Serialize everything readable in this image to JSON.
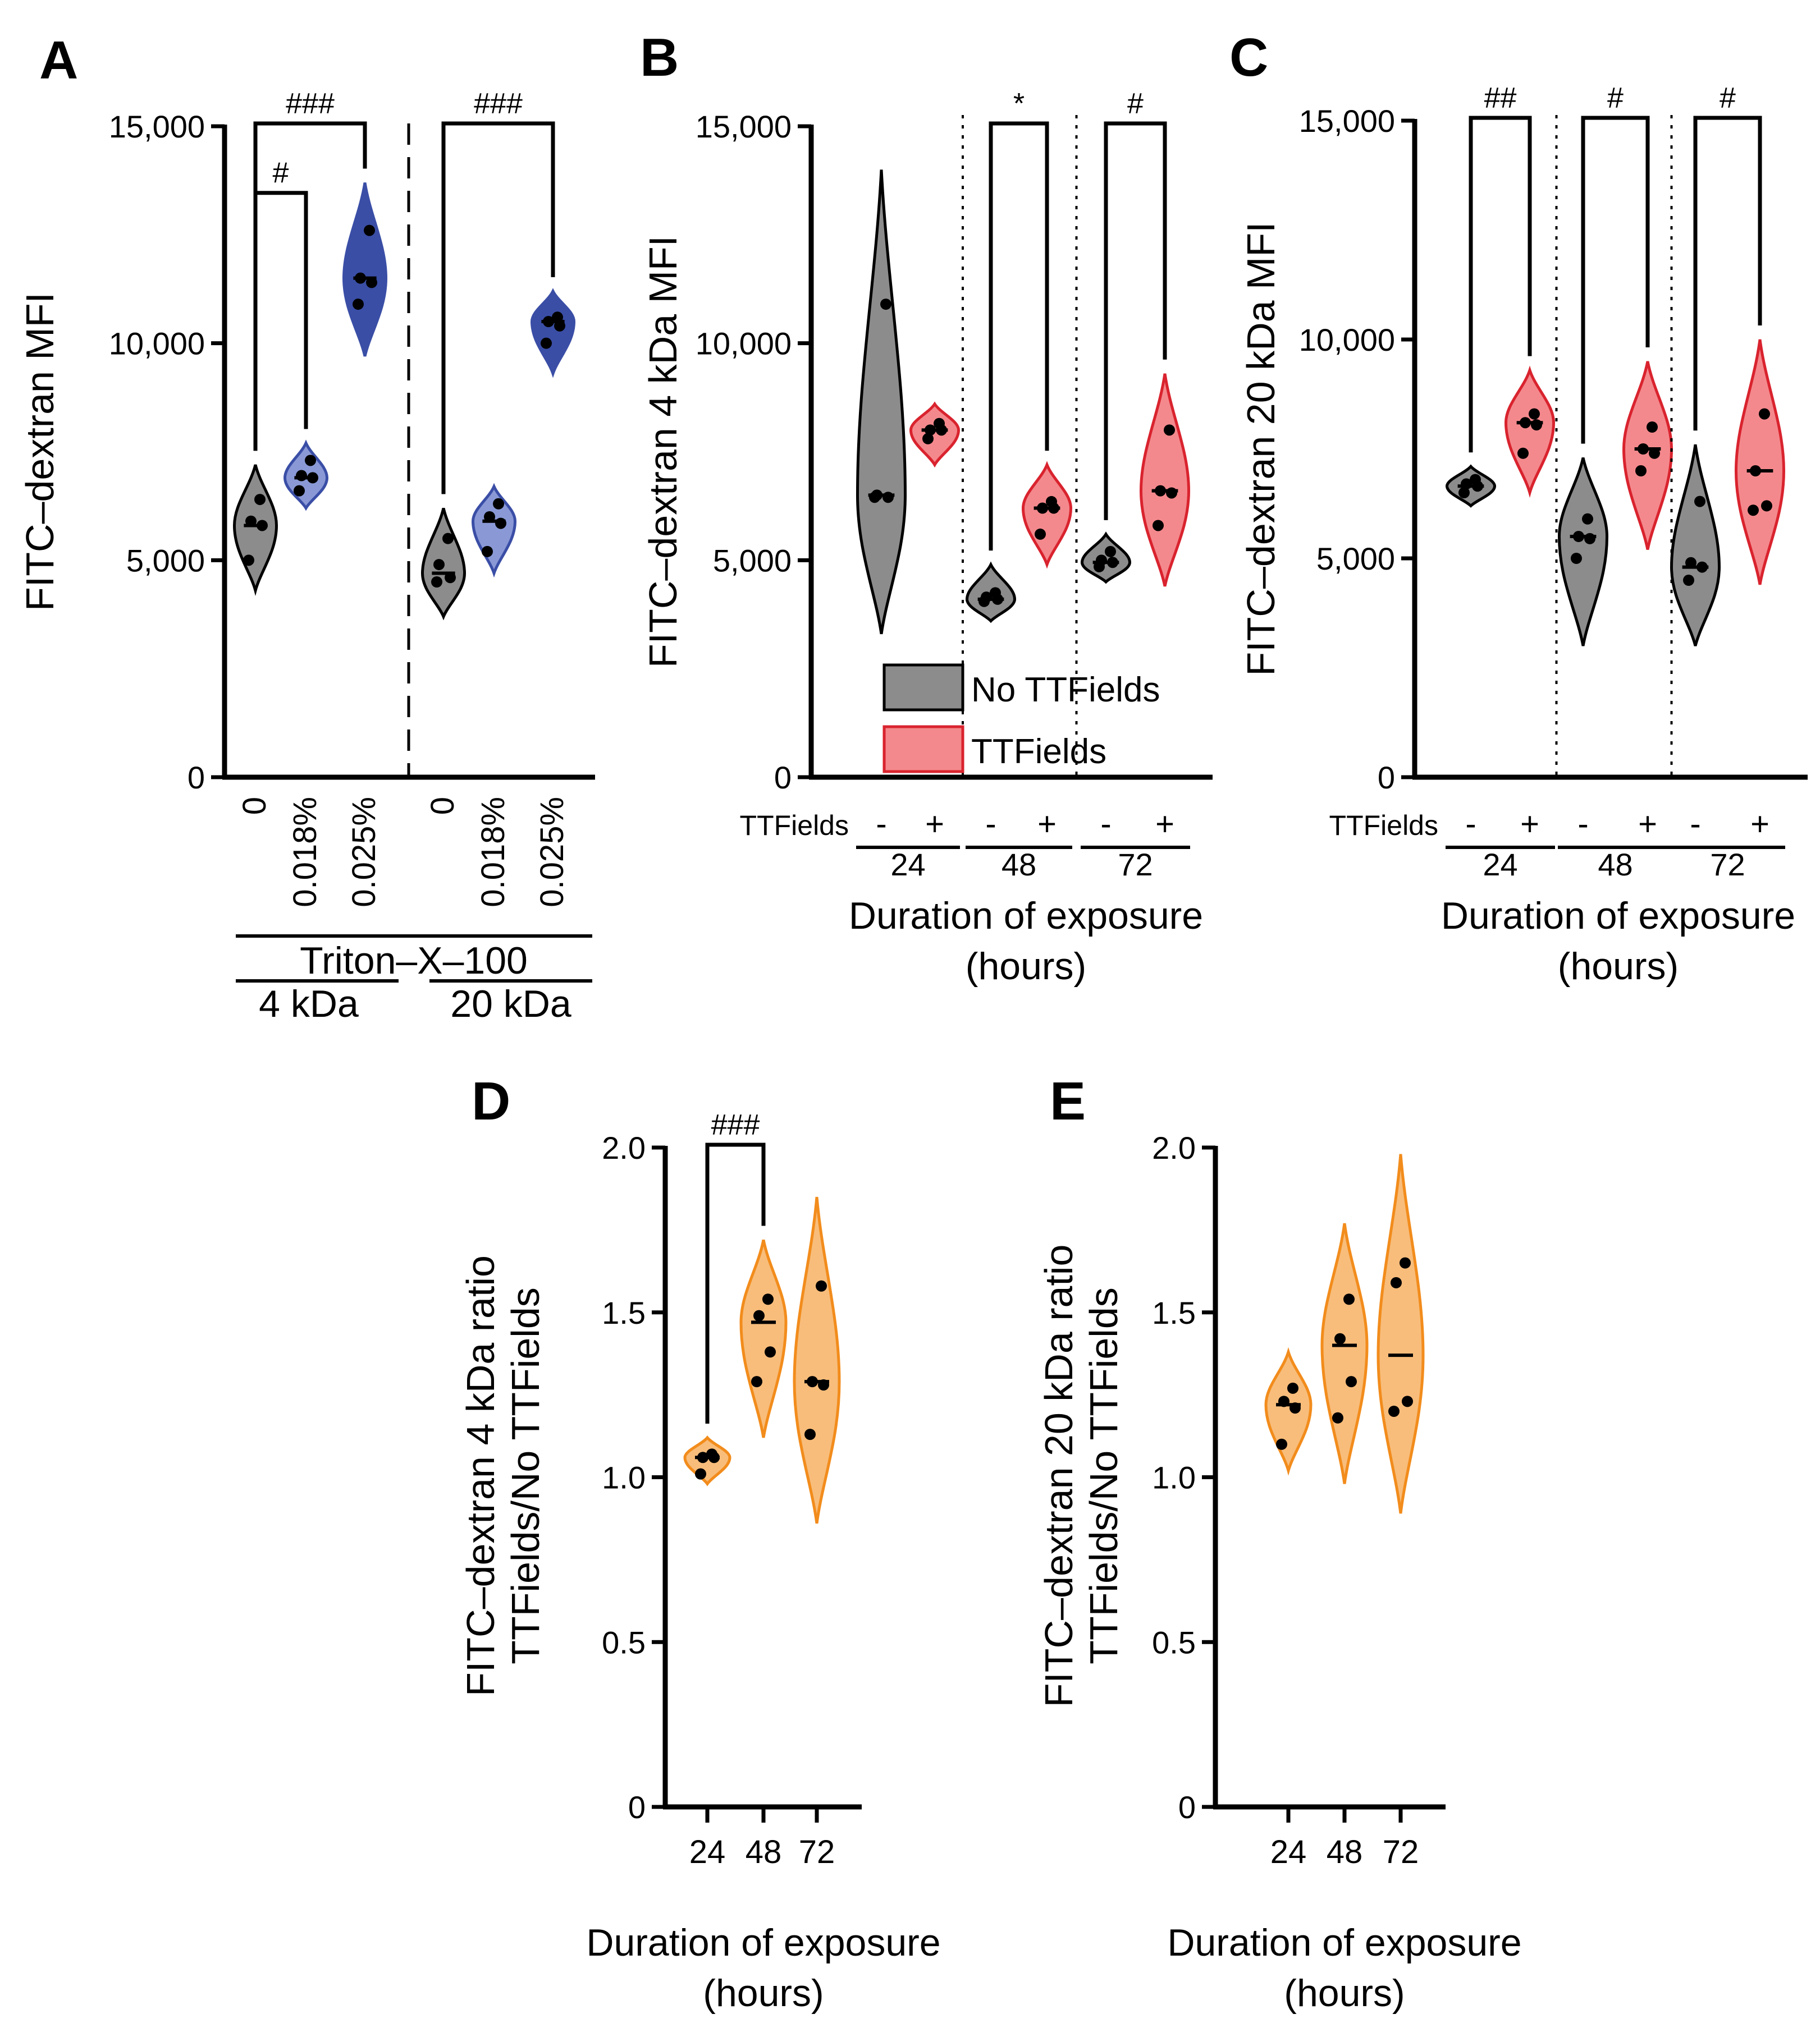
{
  "colors": {
    "axis": "#000000",
    "no_ttfields_fill": "#8c8c8c",
    "no_ttfields_stroke": "#000000",
    "ttfields_fill": "#f4898d",
    "ttfields_stroke": "#d9232e",
    "triton_fill": "#3a4ea6",
    "triton_light_fill": "#8a99d6",
    "triton_stroke": "#3a4ea6",
    "ratio_fill": "#f8bd7b",
    "ratio_stroke": "#f28c1c"
  },
  "chart_data": [
    {
      "panel": "A",
      "type": "violin",
      "ylabel": "FITC–dextran MFI",
      "ylim": [
        0,
        15000
      ],
      "yticks": [
        "0",
        "5,000",
        "10,000",
        "15,000"
      ],
      "ytick_values": [
        0,
        5000,
        10000,
        15000
      ],
      "categories": [
        "0",
        "0.018%",
        "0.025%",
        "0",
        "0.018%",
        "0.025%"
      ],
      "group_label": "Triton–X–100",
      "subgroups": [
        "4 kDa",
        "20 kDa"
      ],
      "series": [
        {
          "name": "4 kDa 0",
          "color": "no_ttfields",
          "median": 5800,
          "points": [
            6400,
            5900,
            5800,
            5000
          ],
          "range": [
            4300,
            7200
          ]
        },
        {
          "name": "4 kDa 0.018%",
          "color": "triton_light",
          "median": 6900,
          "points": [
            7300,
            6950,
            6900,
            6600
          ],
          "range": [
            6200,
            7700
          ]
        },
        {
          "name": "4 kDa 0.025%",
          "color": "triton",
          "median": 11500,
          "points": [
            12600,
            11500,
            11400,
            10900
          ],
          "range": [
            9700,
            13700
          ]
        },
        {
          "name": "20 kDa 0",
          "color": "no_ttfields",
          "median": 4700,
          "points": [
            5500,
            4900,
            4600,
            4500
          ],
          "range": [
            3700,
            6200
          ]
        },
        {
          "name": "20 kDa 0.018%",
          "color": "triton_light",
          "median": 5900,
          "points": [
            6300,
            6000,
            5850,
            5200
          ],
          "range": [
            4700,
            6700
          ]
        },
        {
          "name": "20 kDa 0.025%",
          "color": "triton",
          "median": 10500,
          "points": [
            10600,
            10500,
            10400,
            10000
          ],
          "range": [
            9300,
            11200
          ]
        }
      ],
      "significance": [
        {
          "from": 0,
          "to": 1,
          "label": "#",
          "y": 13400
        },
        {
          "from": 0,
          "to": 2,
          "label": "###",
          "y": 15000
        },
        {
          "from": 3,
          "to": 5,
          "label": "###",
          "y": 15000
        }
      ]
    },
    {
      "panel": "B",
      "type": "violin",
      "ylabel": "FITC–dextran 4 kDa MFI",
      "ylim": [
        0,
        15000
      ],
      "yticks": [
        "0",
        "5,000",
        "10,000",
        "15,000"
      ],
      "ytick_values": [
        0,
        5000,
        10000,
        15000
      ],
      "row_label": "TTFields",
      "categories": [
        "-",
        "+",
        "-",
        "+",
        "-",
        "+"
      ],
      "groups": [
        "24",
        "48",
        "72"
      ],
      "xlabel": "Duration of exposure",
      "xlabel2": "(hours)",
      "legend": [
        "No TTFields",
        "TTFields"
      ],
      "series": [
        {
          "name": "24 -",
          "color": "no_ttfields",
          "median": 6500,
          "points": [
            10900,
            6500,
            6450,
            6450
          ],
          "range": [
            3300,
            14000
          ]
        },
        {
          "name": "24 +",
          "color": "ttfields",
          "median": 8000,
          "points": [
            8150,
            8000,
            8000,
            7800
          ],
          "range": [
            7200,
            8600
          ]
        },
        {
          "name": "48 -",
          "color": "no_ttfields",
          "median": 4100,
          "points": [
            4250,
            4150,
            4100,
            4050
          ],
          "range": [
            3600,
            4900
          ]
        },
        {
          "name": "48 +",
          "color": "ttfields",
          "median": 6200,
          "points": [
            6350,
            6200,
            6200,
            5600
          ],
          "range": [
            4900,
            7200
          ]
        },
        {
          "name": "72 -",
          "color": "no_ttfields",
          "median": 4950,
          "points": [
            5200,
            5000,
            4950,
            4850
          ],
          "range": [
            4500,
            5600
          ]
        },
        {
          "name": "72 +",
          "color": "ttfields",
          "median": 6600,
          "points": [
            8000,
            6600,
            6550,
            5800
          ],
          "range": [
            4400,
            9300
          ]
        }
      ],
      "significance": [
        {
          "from": 2,
          "to": 3,
          "label": "*",
          "y": 15000
        },
        {
          "from": 4,
          "to": 5,
          "label": "#",
          "y": 15000
        }
      ]
    },
    {
      "panel": "C",
      "type": "violin",
      "ylabel": "FITC–dextran 20 kDa MFI",
      "ylim": [
        0,
        15000
      ],
      "yticks": [
        "0",
        "5,000",
        "10,000",
        "15,000"
      ],
      "ytick_values": [
        0,
        5000,
        10000,
        15000
      ],
      "row_label": "TTFields",
      "categories": [
        "-",
        "+",
        "-",
        "+",
        "-",
        "+"
      ],
      "groups": [
        "24",
        "48",
        "72"
      ],
      "xlabel": "Duration of exposure",
      "xlabel2": "(hours)",
      "series": [
        {
          "name": "24 -",
          "color": "no_ttfields",
          "median": 6650,
          "points": [
            6800,
            6700,
            6650,
            6500
          ],
          "range": [
            6200,
            7100
          ]
        },
        {
          "name": "24 +",
          "color": "ttfields",
          "median": 8100,
          "points": [
            8300,
            8100,
            8050,
            7400
          ],
          "range": [
            6500,
            9300
          ]
        },
        {
          "name": "48 -",
          "color": "no_ttfields",
          "median": 5500,
          "points": [
            5900,
            5500,
            5450,
            5000
          ],
          "range": [
            3000,
            7300
          ]
        },
        {
          "name": "48 +",
          "color": "ttfields",
          "median": 7500,
          "points": [
            8000,
            7500,
            7400,
            7000
          ],
          "range": [
            5200,
            9500
          ]
        },
        {
          "name": "72 -",
          "color": "no_ttfields",
          "median": 4800,
          "points": [
            6300,
            4900,
            4800,
            4500
          ],
          "range": [
            3000,
            7600
          ]
        },
        {
          "name": "72 +",
          "color": "ttfields",
          "median": 7000,
          "points": [
            8300,
            7000,
            6200,
            6100
          ],
          "range": [
            4400,
            10000
          ]
        }
      ],
      "significance": [
        {
          "from": 0,
          "to": 1,
          "label": "##",
          "y": 15000
        },
        {
          "from": 2,
          "to": 3,
          "label": "#",
          "y": 15000
        },
        {
          "from": 4,
          "to": 5,
          "label": "#",
          "y": 15000
        }
      ]
    },
    {
      "panel": "D",
      "type": "violin",
      "ylabel": "FITC–dextran 4 kDa ratio",
      "ylabel2": "TTFields/No TTFields",
      "ylim": [
        0,
        2.0
      ],
      "yticks": [
        "0",
        "0.5",
        "1.0",
        "1.5",
        "2.0"
      ],
      "ytick_values": [
        0,
        0.5,
        1.0,
        1.5,
        2.0
      ],
      "categories": [
        "24",
        "48",
        "72"
      ],
      "xlabel": "Duration of exposure",
      "xlabel2": "(hours)",
      "series": [
        {
          "name": "24",
          "color": "ratio",
          "median": 1.06,
          "points": [
            1.07,
            1.06,
            1.06,
            1.01
          ],
          "range": [
            0.98,
            1.12
          ]
        },
        {
          "name": "48",
          "color": "ratio",
          "median": 1.47,
          "points": [
            1.54,
            1.49,
            1.38,
            1.29
          ],
          "range": [
            1.12,
            1.72
          ]
        },
        {
          "name": "72",
          "color": "ratio",
          "median": 1.29,
          "points": [
            1.58,
            1.29,
            1.28,
            1.13
          ],
          "range": [
            0.86,
            1.85
          ]
        }
      ],
      "significance": [
        {
          "from": 0,
          "to": 1,
          "label": "###",
          "y": 2.0
        }
      ]
    },
    {
      "panel": "E",
      "type": "violin",
      "ylabel": "FITC–dextran 20 kDa ratio",
      "ylabel2": "TTFields/No TTFields",
      "ylim": [
        0,
        2.0
      ],
      "yticks": [
        "0",
        "0.5",
        "1.0",
        "1.5",
        "2.0"
      ],
      "ytick_values": [
        0,
        0.5,
        1.0,
        1.5,
        2.0
      ],
      "categories": [
        "24",
        "48",
        "72"
      ],
      "xlabel": "Duration of exposure",
      "xlabel2": "(hours)",
      "series": [
        {
          "name": "24",
          "color": "ratio",
          "median": 1.22,
          "points": [
            1.27,
            1.23,
            1.21,
            1.1
          ],
          "range": [
            1.02,
            1.38
          ]
        },
        {
          "name": "48",
          "color": "ratio",
          "median": 1.4,
          "points": [
            1.54,
            1.42,
            1.29,
            1.18
          ],
          "range": [
            0.98,
            1.77
          ]
        },
        {
          "name": "72",
          "color": "ratio",
          "median": 1.37,
          "points": [
            1.65,
            1.59,
            1.23,
            1.2
          ],
          "range": [
            0.89,
            1.98
          ]
        }
      ],
      "significance": []
    }
  ]
}
